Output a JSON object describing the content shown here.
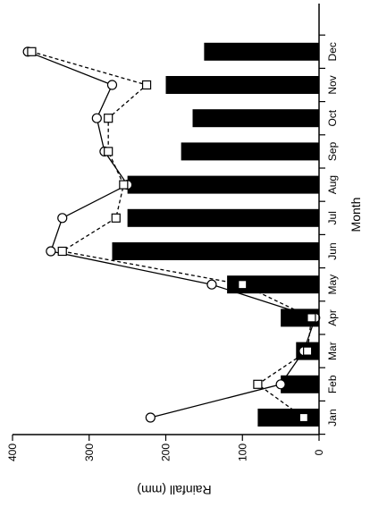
{
  "chart_data": {
    "type": "bar",
    "orientation": "rotated-90",
    "categories": [
      "Jan",
      "Feb",
      "Mar",
      "Apr",
      "May",
      "Jun",
      "Jul",
      "Aug",
      "Sep",
      "Oct",
      "Nov",
      "Dec"
    ],
    "bar_values": [
      80,
      50,
      30,
      50,
      120,
      270,
      250,
      250,
      180,
      165,
      200,
      150
    ],
    "series": [
      {
        "style": "solid-circle",
        "values": [
          220,
          50,
          20,
          5,
          140,
          350,
          335,
          250,
          280,
          290,
          270,
          380
        ]
      },
      {
        "style": "dashed-square",
        "values": [
          20,
          80,
          15,
          10,
          100,
          335,
          265,
          255,
          275,
          275,
          225,
          375
        ]
      }
    ],
    "xlabel": "Month",
    "ylabel": "Rainfall (mm)",
    "ylim": [
      0,
      400
    ],
    "yticks": [
      "0",
      "100",
      "200",
      "300",
      "400"
    ],
    "grid": false
  }
}
